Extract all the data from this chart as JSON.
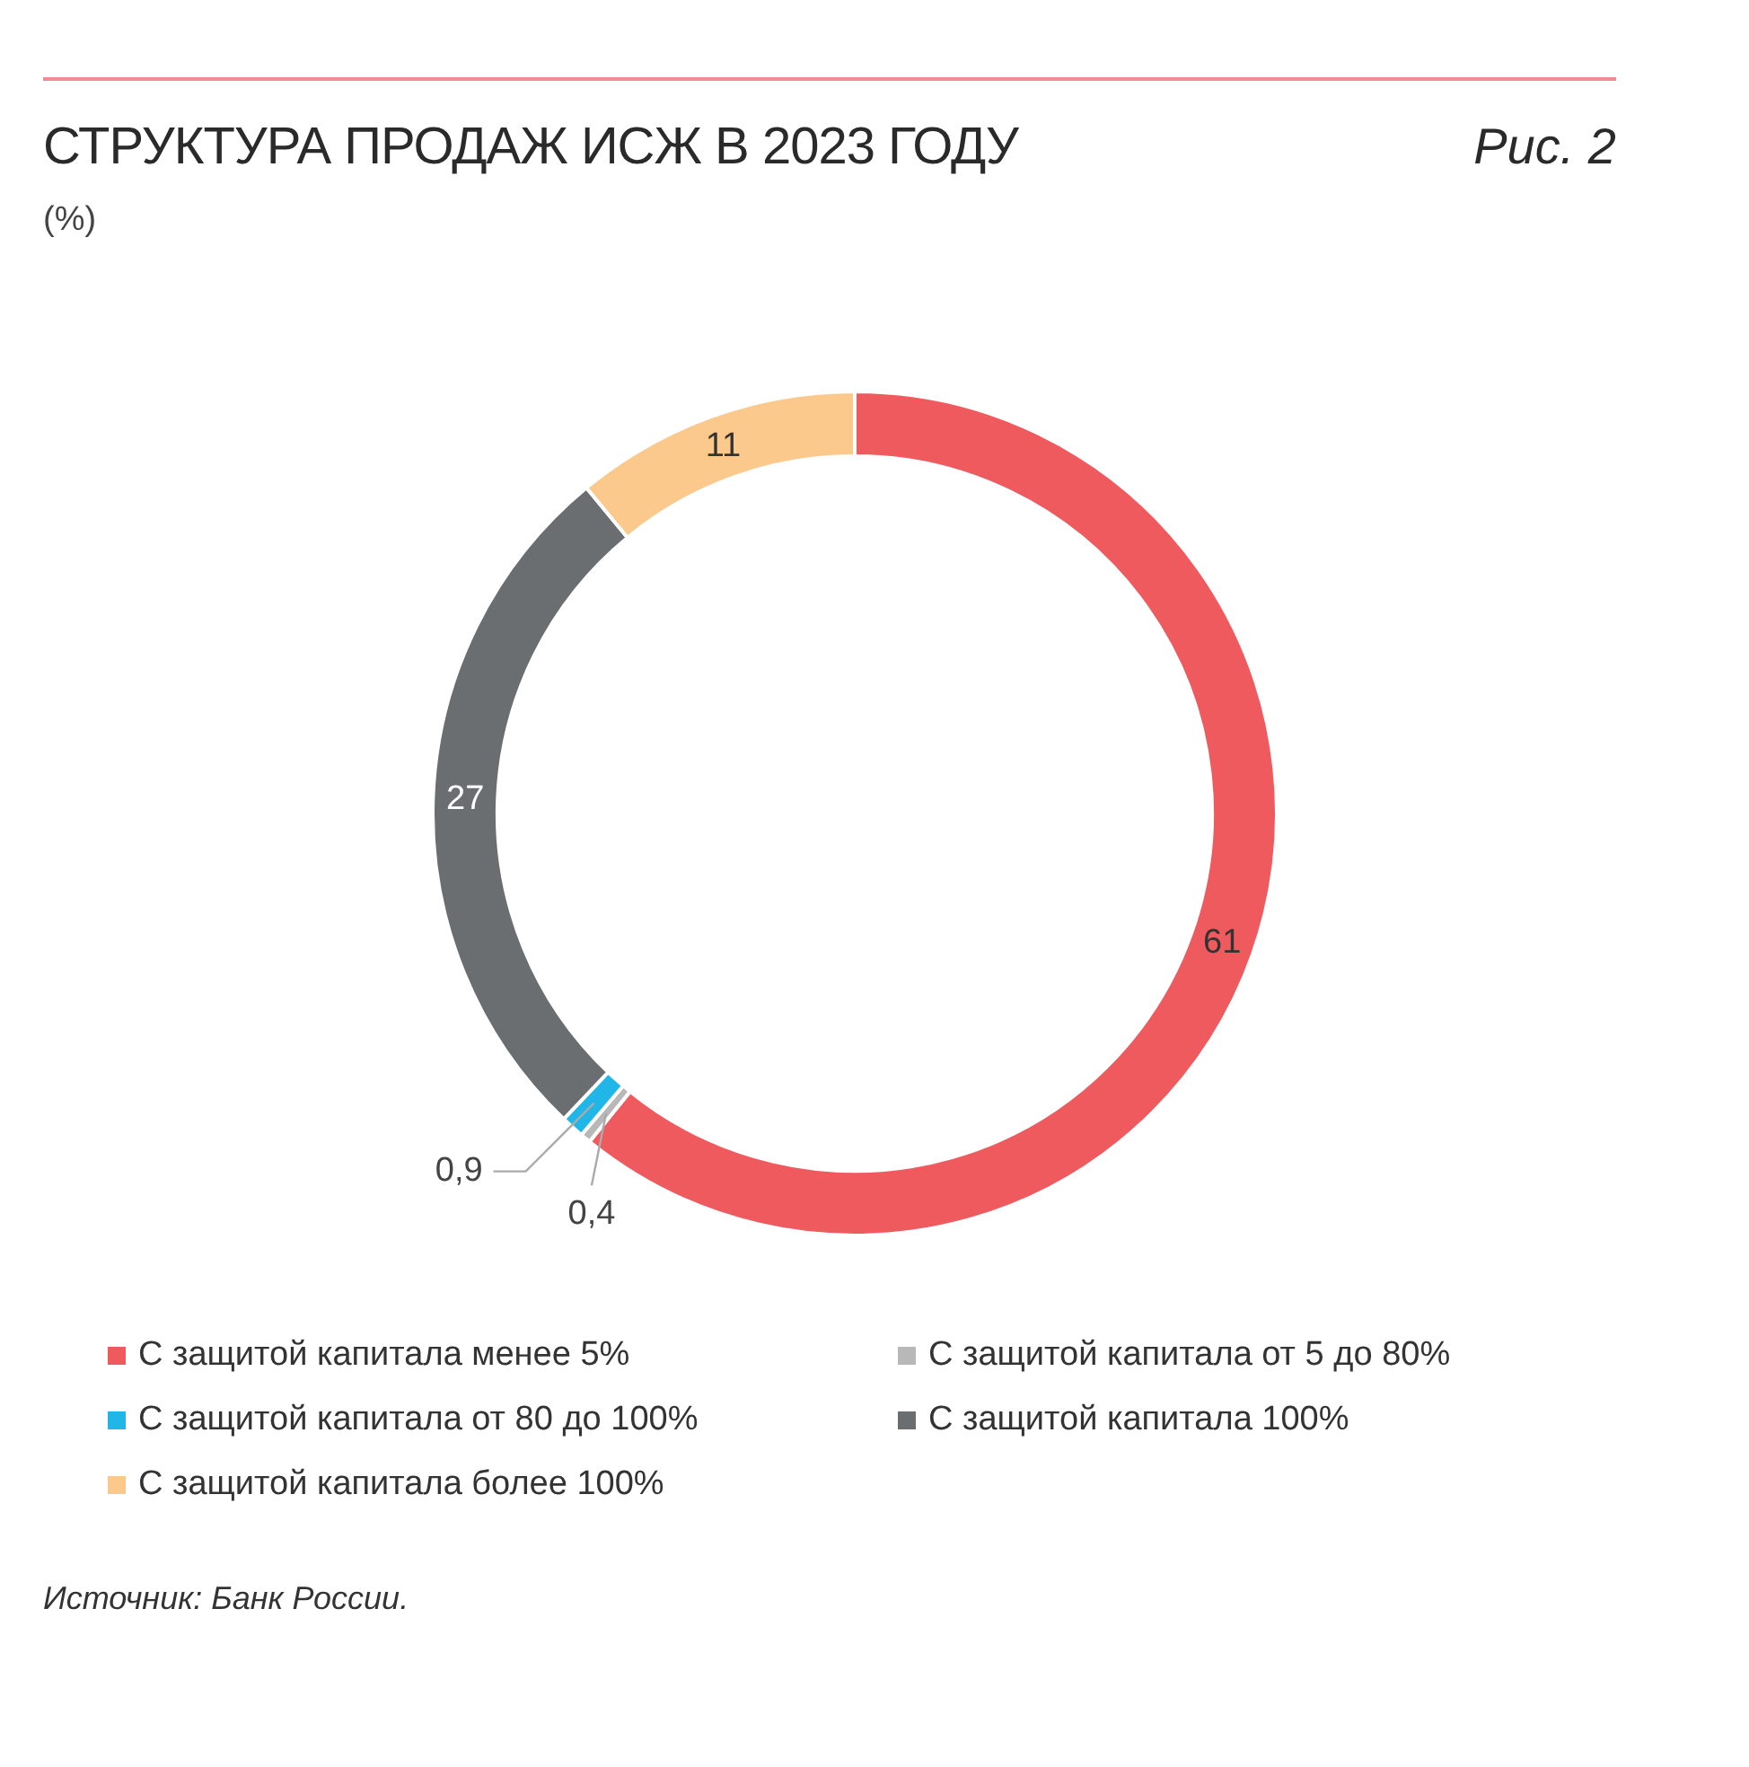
{
  "chart_data": {
    "type": "donut",
    "title": "СТРУКТУРА ПРОДАЖ ИСЖ В 2023 ГОДУ",
    "subtitle": "(%)",
    "categories": [
      "С защитой капитала менее 5%",
      "С защитой капитала от 5 до 80%",
      "С защитой капитала от 80 до 100%",
      "С защитой капитала 100%",
      "С защитой капитала более 100%"
    ],
    "values": [
      61,
      0.4,
      0.9,
      27,
      11
    ],
    "colors": [
      "#ef5a5f",
      "#b8b8b8",
      "#21b6e8",
      "#6b6e70",
      "#fbc98b"
    ],
    "value_labels": [
      "61",
      "0,4",
      "0,9",
      "27",
      "11"
    ],
    "legend": "bottom",
    "annotations": [
      "Рис. 2",
      "Источник: Банк России."
    ]
  }
}
